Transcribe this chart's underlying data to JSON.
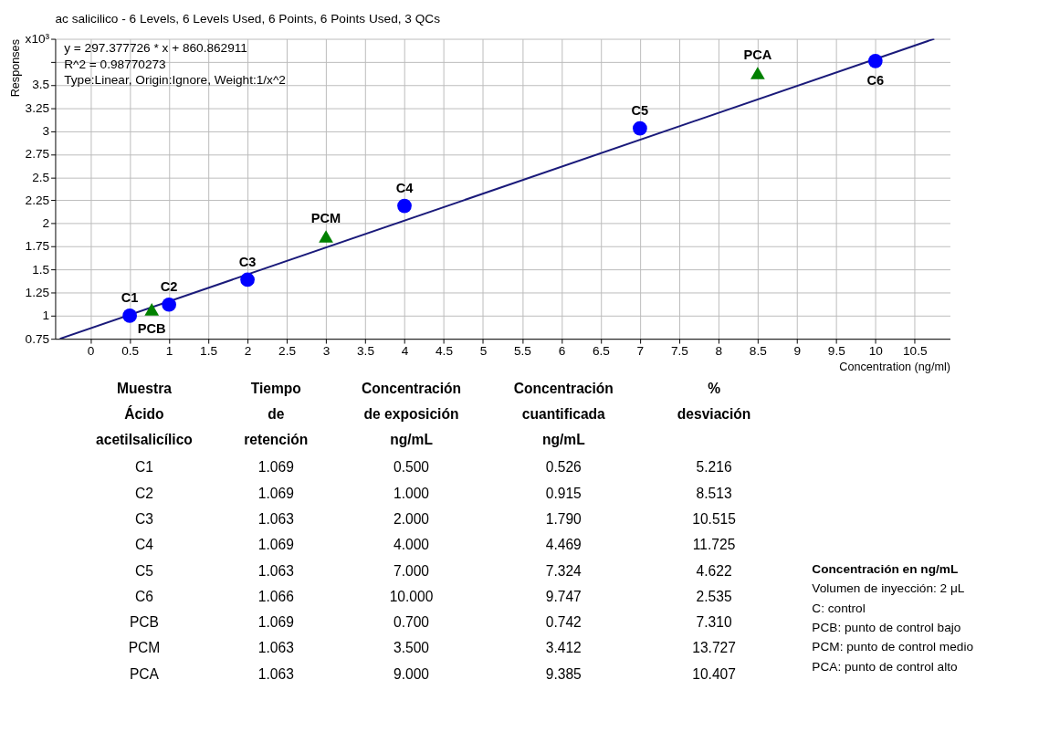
{
  "chart_data": {
    "type": "scatter",
    "title": "ac salicilico - 6 Levels, 6 Levels Used, 6 Points, 6 Points Used, 3 QCs",
    "xlabel": "Concentration (ng/ml)",
    "ylabel": "Responses",
    "xlim": [
      -0.45,
      10.95
    ],
    "ylim": [
      0.75,
      4.0
    ],
    "xticks": [
      0,
      0.5,
      1,
      1.5,
      2,
      2.5,
      3,
      3.5,
      4,
      4.5,
      5,
      5.5,
      6,
      6.5,
      7,
      7.5,
      8,
      8.5,
      9,
      9.5,
      10,
      10.5
    ],
    "yticks": [
      0.75,
      1,
      1.25,
      1.5,
      1.75,
      2,
      2.25,
      2.5,
      2.75,
      3,
      3.25,
      3.5,
      {
        "value": 3.75,
        "label": null
      },
      {
        "value": 4,
        "label": "x10³"
      }
    ],
    "grid": true,
    "series": [
      {
        "type": "line",
        "color": "#1a1a7a",
        "marker": "none",
        "line_style": "solid",
        "x": [
          -0.39,
          10.75
        ],
        "values": [
          0.75,
          4.0
        ]
      },
      {
        "color": "#0000ff",
        "marker": "circle",
        "x": [
          0.5,
          1,
          2,
          4,
          7,
          10
        ],
        "values": [
          1.0,
          1.12,
          1.39,
          2.19,
          3.03,
          3.76
        ]
      },
      {
        "color": "#008000",
        "marker": "triangle",
        "x": [
          0.78,
          3,
          8.5
        ],
        "values": [
          1.07,
          1.86,
          3.63
        ]
      }
    ],
    "annotations": [
      "y = 297.377726 * x  + 860.862911",
      "R^2 = 0.98770273",
      "Type:Linear, Origin:Ignore, Weight:1/x^2",
      {
        "text": "C1",
        "x": 0.5,
        "y": 1.0
      },
      {
        "text": "C2",
        "x": 1,
        "y": 1.12
      },
      {
        "text": "C3",
        "x": 2,
        "y": 1.39
      },
      {
        "text": "C4",
        "x": 4,
        "y": 2.19
      },
      {
        "text": "C5",
        "x": 7,
        "y": 3.03
      },
      {
        "text": "C6",
        "x": 10,
        "y": 3.76
      },
      {
        "text": "PCB",
        "x": 0.78,
        "y": 1.07
      },
      {
        "text": "PCM",
        "x": 3,
        "y": 1.86
      },
      {
        "text": "PCA",
        "x": 8.5,
        "y": 3.63
      },
      "Muestra\nÁcido\nacetilsalicílico",
      "Tiempo\nde\nretención",
      "Concentración\nde exposición\nng/mL",
      "Concentración\ncuantificada\nng/mL",
      "%\ndesviación",
      "C1",
      "1.069",
      "0.500",
      "0.526",
      "5.216",
      "C2",
      "1.069",
      "1.000",
      "0.915",
      "8.513",
      "C3",
      "1.063",
      "2.000",
      "1.790",
      "10.515",
      "C4",
      "1.069",
      "4.000",
      "4.469",
      "11.725",
      "C5",
      "1.063",
      "7.000",
      "7.324",
      "4.622",
      "C6",
      "1.066",
      "10.000",
      "9.747",
      "2.535",
      "PCB",
      "1.069",
      "0.700",
      "0.742",
      "7.310",
      "PCM",
      "1.063",
      "3.500",
      "3.412",
      "13.727",
      "PCA",
      "1.063",
      "9.000",
      "9.385",
      "10.407",
      "Concentración en ng/mL",
      "Volumen de inyección: 2 μL",
      "C: control",
      "PCB: punto de control bajo",
      "PCM: punto de control medio",
      "PCA: punto de control  alto"
    ]
  }
}
